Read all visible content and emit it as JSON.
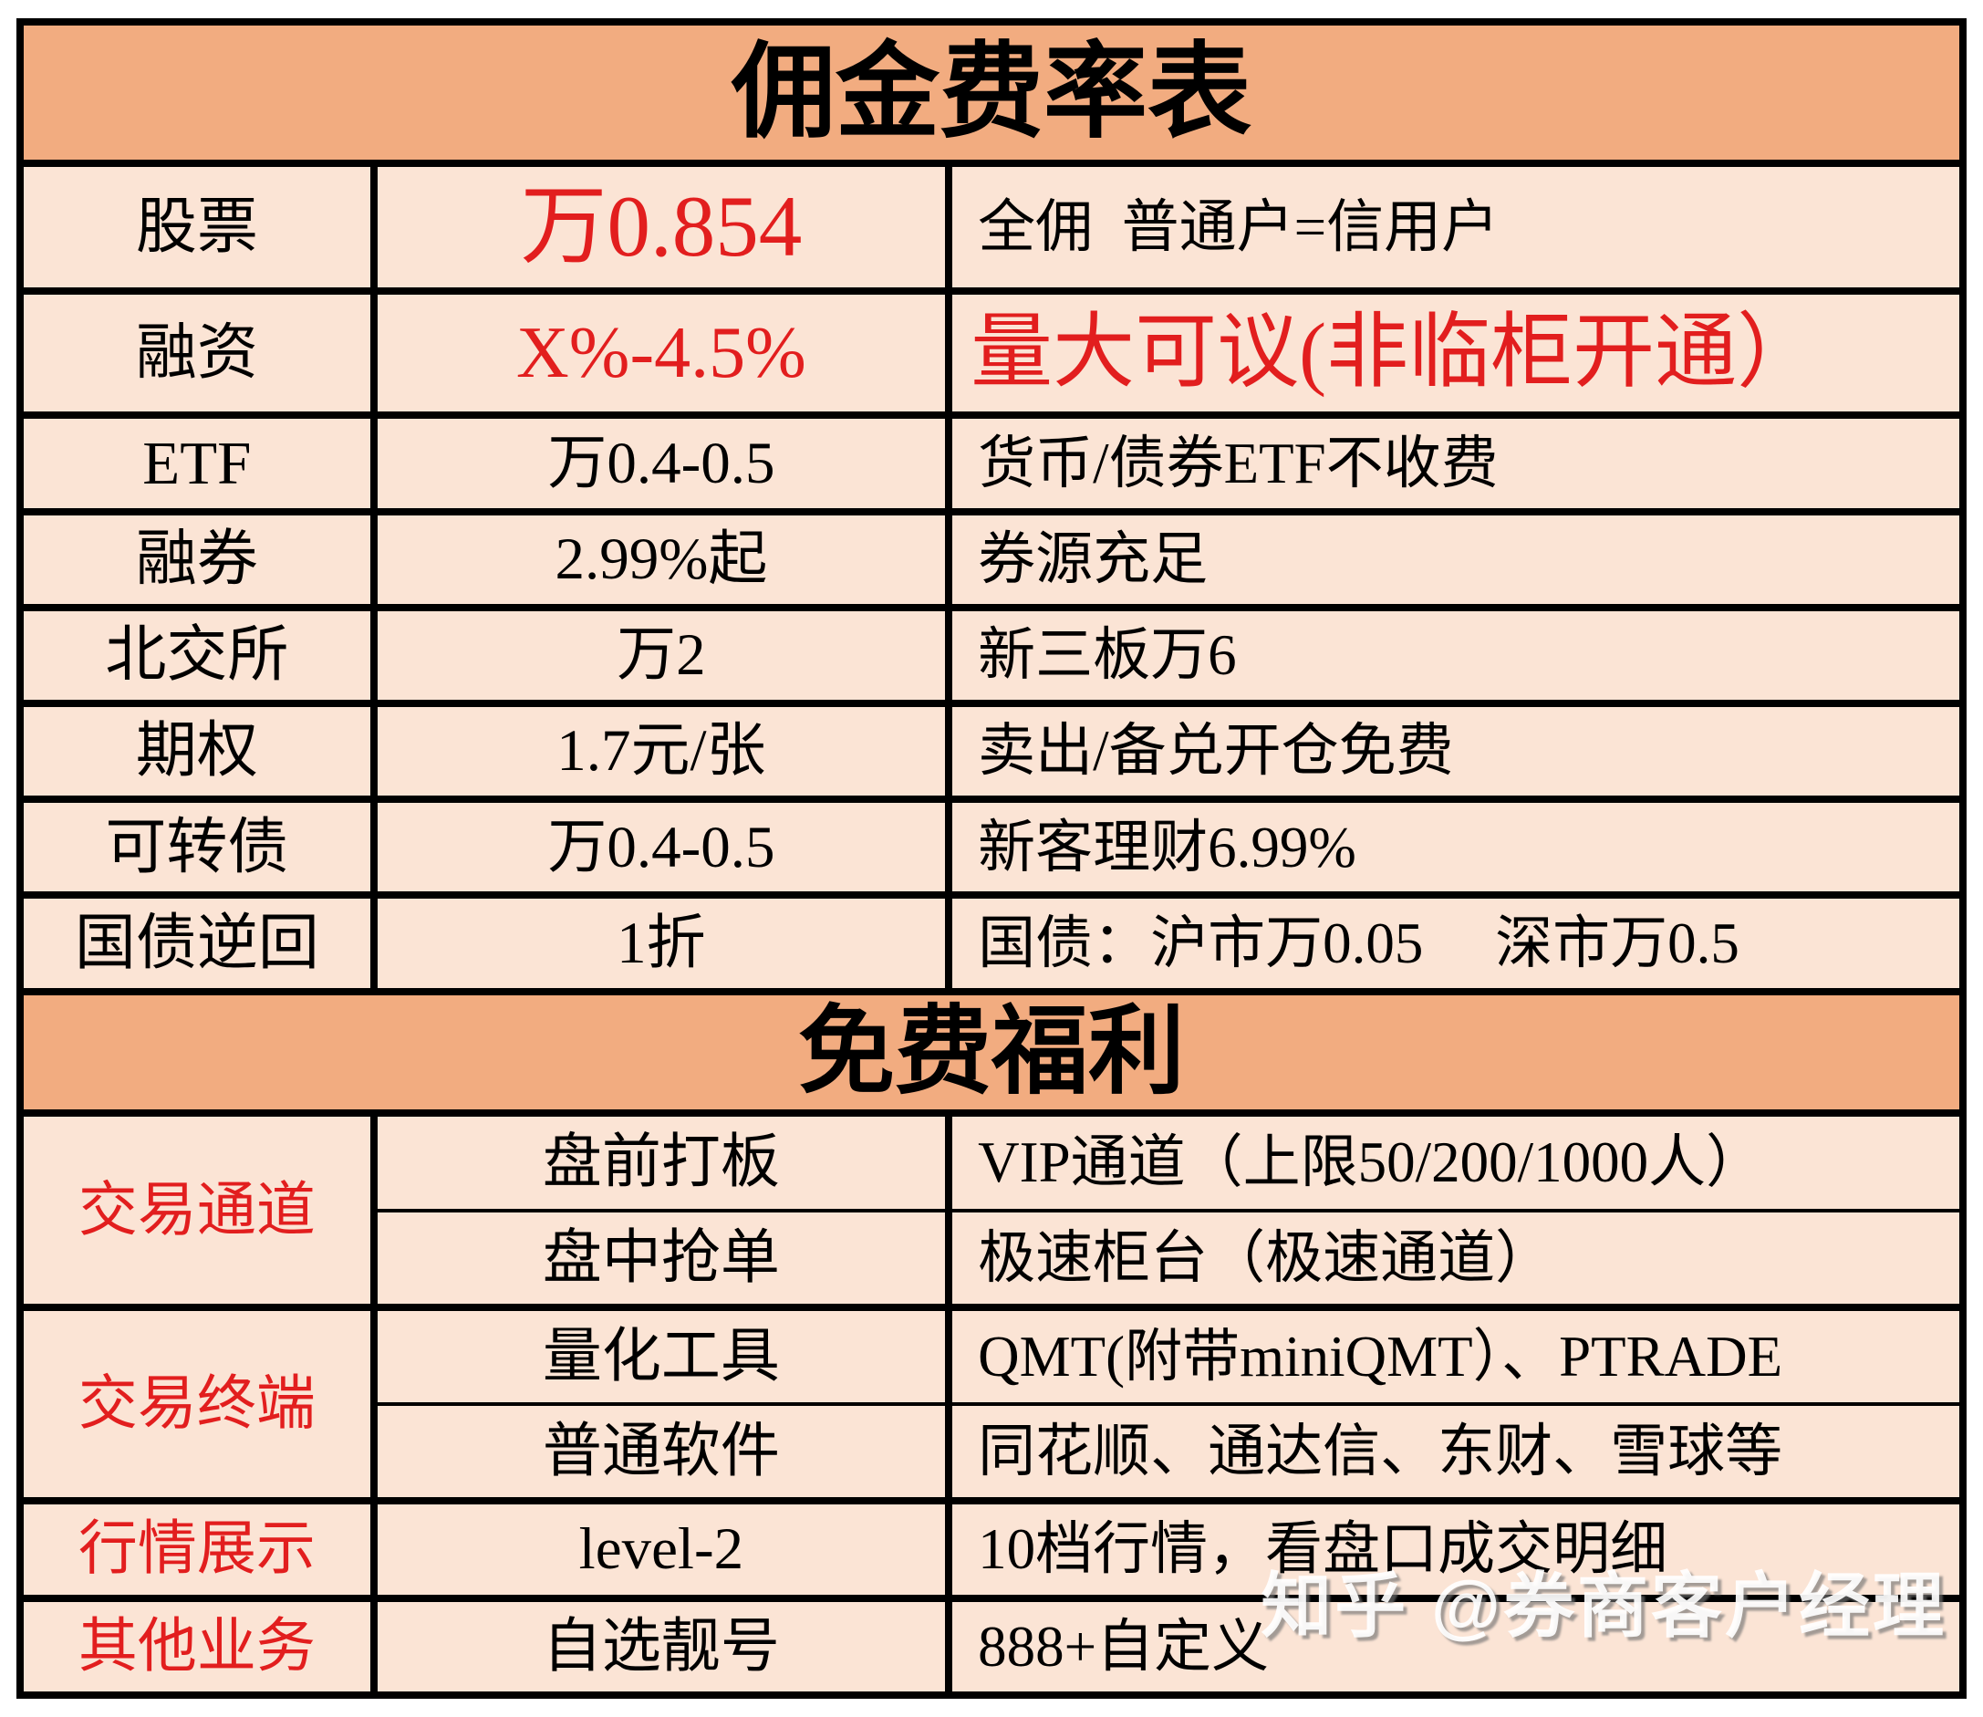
{
  "colors": {
    "header_bg": "#F2AC80",
    "cell_bg": "#FBE4D5",
    "border": "#000000",
    "accent_red": "#E21E1E",
    "watermark_text_color": "#FFFFFF"
  },
  "fee_table": {
    "title": "佣金费率表",
    "rows": [
      {
        "label": "股票",
        "value": "万0.854",
        "note": "全佣  普通户=信用户"
      },
      {
        "label": "融资",
        "value": "X%-4.5%",
        "note": "量大可议(非临柜开通）"
      },
      {
        "label": "ETF",
        "value": "万0.4-0.5",
        "note": "货币/债券ETF不收费"
      },
      {
        "label": "融券",
        "value": "2.99%起",
        "note": "券源充足"
      },
      {
        "label": "北交所",
        "value": "万2",
        "note": "新三板万6"
      },
      {
        "label": "期权",
        "value": "1.7元/张",
        "note": "卖出/备兑开仓免费"
      },
      {
        "label": "可转债",
        "value": "万0.4-0.5",
        "note": "新客理财6.99%"
      },
      {
        "label": "国债逆回",
        "value": "1折",
        "note": "国债：沪市万0.05 　深市万0.5"
      }
    ]
  },
  "benefits": {
    "title": "免费福利",
    "groups": [
      {
        "category": "交易通道",
        "items": [
          {
            "name": "盘前打板",
            "desc": "VIP通道（上限50/200/1000人）"
          },
          {
            "name": "盘中抢单",
            "desc": "极速柜台（极速通道）"
          }
        ]
      },
      {
        "category": "交易终端",
        "items": [
          {
            "name": "量化工具",
            "desc": "QMT(附带miniQMT）、PTRADE"
          },
          {
            "name": "普通软件",
            "desc": "同花顺、通达信、东财、雪球等"
          }
        ]
      },
      {
        "category": "行情展示",
        "items": [
          {
            "name": "level-2",
            "desc": "10档行情，看盘口成交明细"
          }
        ]
      },
      {
        "category": "其他业务",
        "items": [
          {
            "name": "自选靓号",
            "desc": "888+自定义"
          }
        ]
      }
    ]
  },
  "watermark": {
    "text": "知乎 @券商客户经理"
  }
}
